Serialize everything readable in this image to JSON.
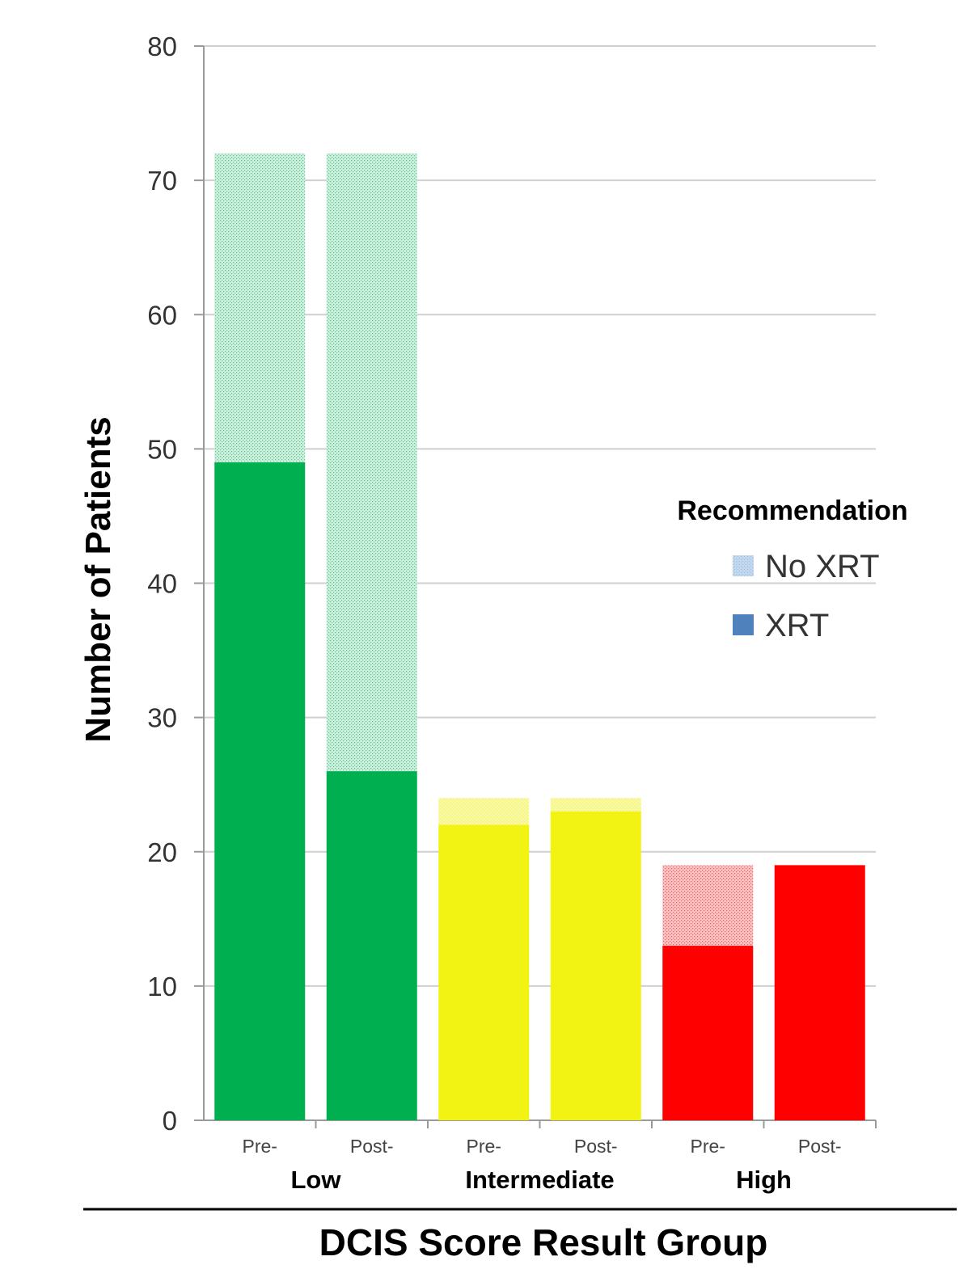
{
  "chart_data": {
    "type": "bar",
    "stacked": true,
    "title": "",
    "xlabel": "DCIS Score Result Group",
    "ylabel": "Number of Patients",
    "ylim": [
      0,
      80
    ],
    "yticks": [
      0,
      10,
      20,
      30,
      40,
      50,
      60,
      70,
      80
    ],
    "grid": true,
    "legend": {
      "title": "Recommendation",
      "position": "right",
      "entries": [
        {
          "label": "No XRT",
          "swatch_color": "#c3d9ef",
          "patterned": true
        },
        {
          "label": "XRT",
          "swatch_color": "#4f81bd",
          "patterned": false
        }
      ]
    },
    "groups": [
      {
        "name": "Low",
        "color": "#00b050",
        "light_color": "#cdeedd"
      },
      {
        "name": "Intermediate",
        "color": "#f2f213",
        "light_color": "#f8f8a6"
      },
      {
        "name": "High",
        "color": "#ff0000",
        "light_color": "#f7c4c4"
      }
    ],
    "categories": [
      "Pre-",
      "Post-",
      "Pre-",
      "Post-",
      "Pre-",
      "Post-"
    ],
    "category_group": [
      0,
      0,
      1,
      1,
      2,
      2
    ],
    "series": [
      {
        "name": "XRT",
        "values": [
          49,
          26,
          22,
          23,
          13,
          19
        ]
      },
      {
        "name": "No XRT",
        "values": [
          23,
          46,
          2,
          1,
          6,
          0
        ]
      }
    ]
  }
}
